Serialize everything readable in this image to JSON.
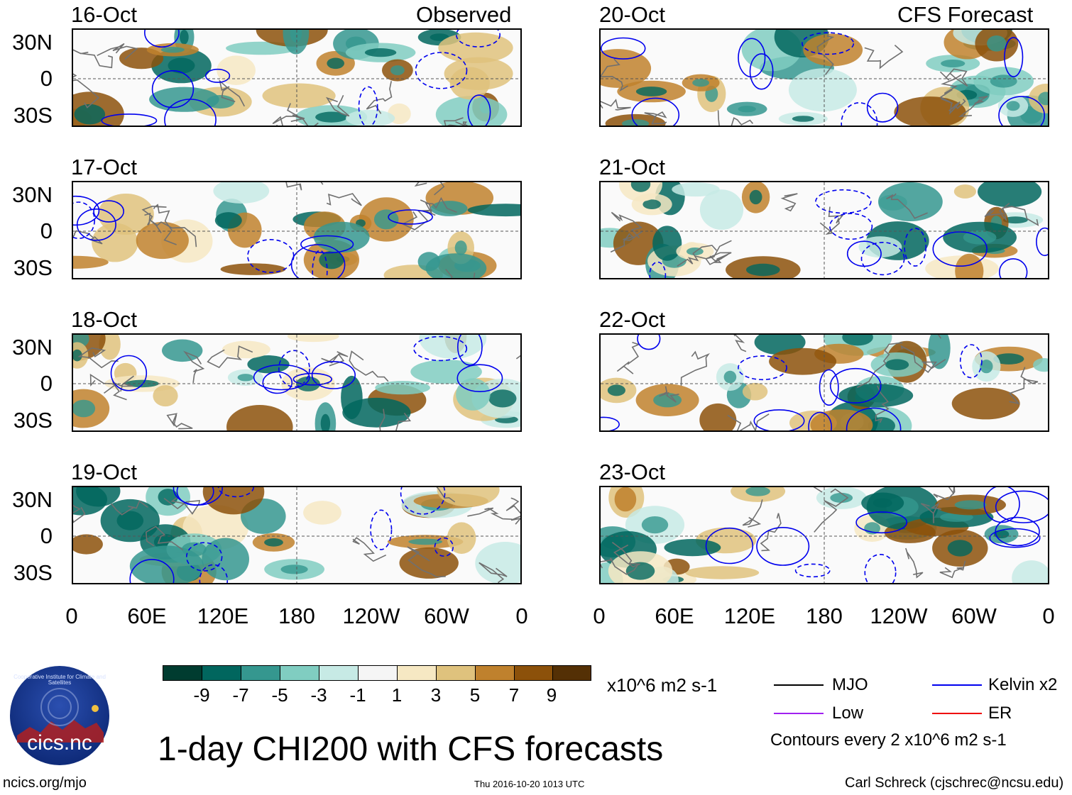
{
  "panels_left_header": "Observed",
  "panels_right_header": "CFS Forecast",
  "dates_left": [
    "16-Oct",
    "17-Oct",
    "18-Oct",
    "19-Oct"
  ],
  "dates_right": [
    "20-Oct",
    "21-Oct",
    "22-Oct",
    "23-Oct"
  ],
  "lat_labels": [
    "30N",
    "0",
    "30S"
  ],
  "lon_labels": [
    "0",
    "60E",
    "120E",
    "180",
    "120W",
    "60W",
    "0"
  ],
  "colorbar": {
    "labels": [
      "-9",
      "-7",
      "-5",
      "-3",
      "-1",
      "1",
      "3",
      "5",
      "7",
      "9"
    ],
    "colors": [
      "#003c30",
      "#01665e",
      "#35978f",
      "#80cdc1",
      "#c7eae5",
      "#f5f5f5",
      "#f6e8c3",
      "#dfc27d",
      "#bf812d",
      "#8c510a",
      "#543005"
    ],
    "units": "x10^6 m2 s-1"
  },
  "legend": {
    "items": [
      {
        "label": "MJO",
        "color": "#000000"
      },
      {
        "label": "Kelvin x2",
        "color": "#0000ee"
      },
      {
        "label": "Low",
        "color": "#a020f0"
      },
      {
        "label": "ER",
        "color": "#ee0000"
      }
    ],
    "contours_note": "Contours every 2 x10^6 m2 s-1"
  },
  "logo_text": "cics.nc",
  "logo_ring_text": "Cooperative Institute for Climate and Satellites",
  "title": "1-day CHI200 with CFS forecasts",
  "footer": {
    "left": "ncics.org/mjo",
    "center": "Thu 2016-10-20 1013 UTC",
    "right": "Carl Schreck (cjschrec@ncsu.edu)"
  }
}
